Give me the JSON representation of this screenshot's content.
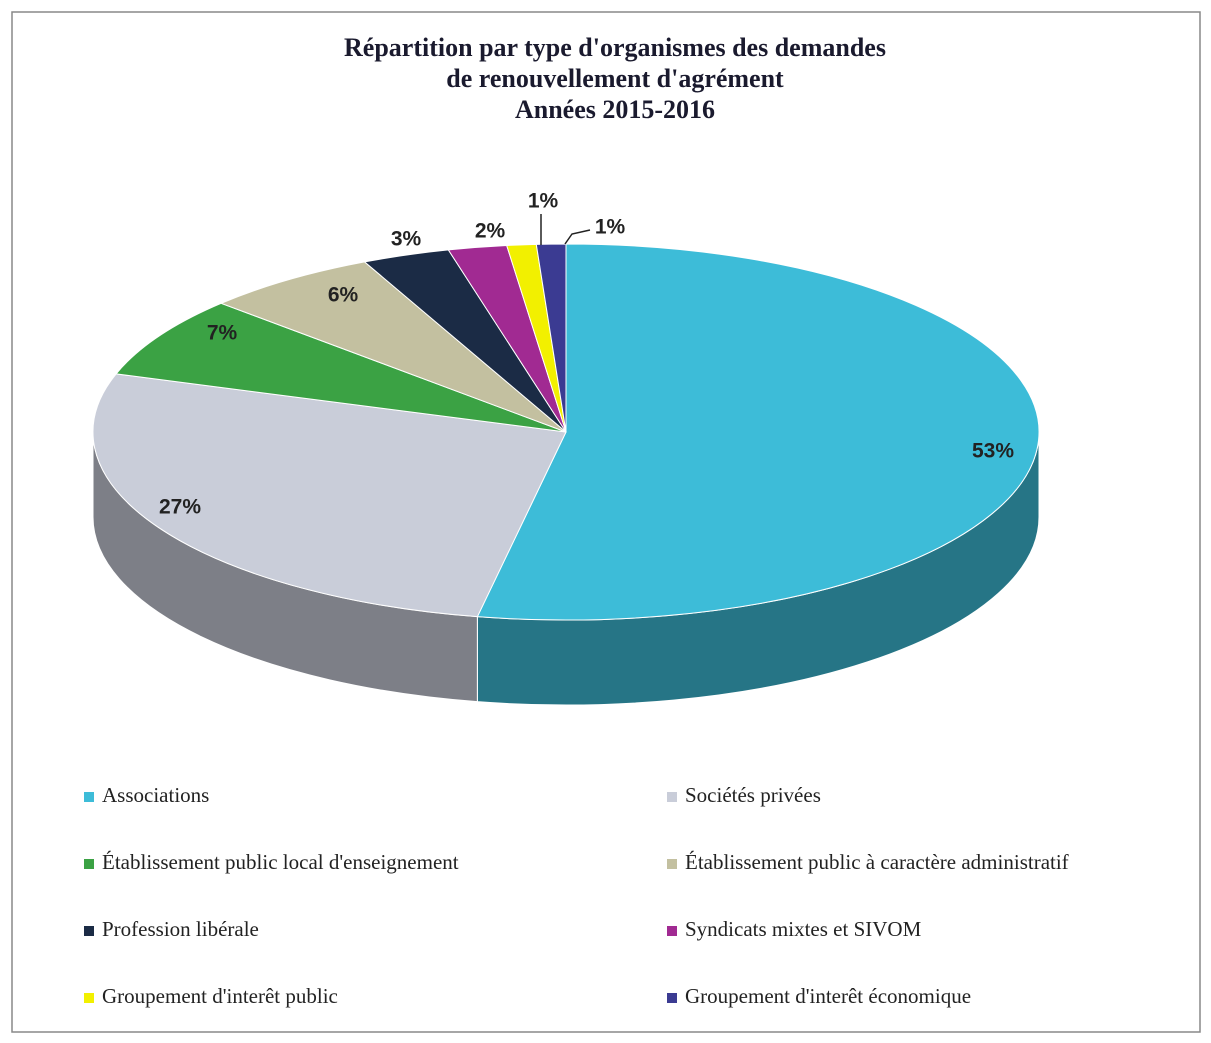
{
  "chart_data": {
    "type": "pie3d",
    "title": [
      "Répartition par type d'organismes des demandes",
      "de renouvellement d'agrément",
      "Années 2015-2016"
    ],
    "categories": [
      "Associations",
      "Sociétés privées",
      "Établissement public local d'enseignement",
      "Établissement public à caractère administratif",
      "Profession libérale",
      "Syndicats mixtes et SIVOM",
      "Groupement d'interêt public",
      "Groupement d'interêt économique"
    ],
    "values": [
      53,
      27,
      7,
      6,
      3,
      2,
      1,
      1
    ],
    "value_labels": [
      "53%",
      "27%",
      "7%",
      "6%",
      "3%",
      "2%",
      "1%",
      "1%"
    ],
    "colors": [
      "#3dbcd8",
      "#c9cdd9",
      "#3ba244",
      "#c3c0a0",
      "#1b2b45",
      "#a12a92",
      "#f2f000",
      "#3b3b92"
    ],
    "legend": "bottom"
  }
}
